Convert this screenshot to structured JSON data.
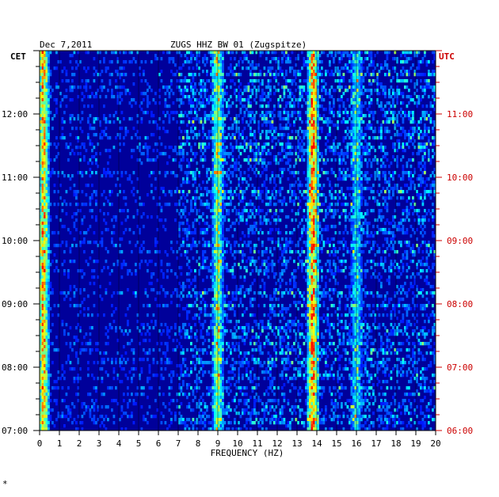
{
  "header": {
    "date": "Dec 7,2011",
    "station": "ZUGS HHZ BW 01 (Zugspitze)"
  },
  "footer": {
    "mark": "*"
  },
  "chart_data": {
    "type": "heatmap",
    "title": "ZUGS HHZ BW 01 (Zugspitze)",
    "xlabel": "FREQUENCY (HZ)",
    "x_range": [
      0,
      20
    ],
    "x_ticks": [
      "0",
      "1",
      "2",
      "3",
      "4",
      "5",
      "6",
      "7",
      "8",
      "9",
      "10",
      "11",
      "12",
      "13",
      "14",
      "15",
      "16",
      "17",
      "18",
      "19",
      "20"
    ],
    "left_axis": {
      "label": "CET",
      "ticks": [
        "07:00",
        "08:00",
        "09:00",
        "10:00",
        "11:00",
        "12:00"
      ],
      "tick_hours": [
        7,
        8,
        9,
        10,
        11,
        12
      ],
      "color": "#000000"
    },
    "right_axis": {
      "label": "UTC",
      "ticks": [
        "06:00",
        "07:00",
        "08:00",
        "09:00",
        "10:00",
        "11:00"
      ],
      "tick_hours": [
        6,
        7,
        8,
        9,
        10,
        11
      ],
      "color": "#cc0000"
    },
    "time_range_cet": [
      7.0,
      13.0
    ],
    "colormap": [
      "#00007f",
      "#0000ff",
      "#00ffff",
      "#ffff00",
      "#ff0000"
    ],
    "background_color": "#00009a",
    "grid": true,
    "energy_bands": [
      {
        "freq_hz": 0.2,
        "strength": 0.85
      },
      {
        "freq_hz": 9.0,
        "strength": 0.55
      },
      {
        "freq_hz": 13.8,
        "strength": 0.9
      },
      {
        "freq_hz": 16.0,
        "strength": 0.35
      }
    ]
  }
}
